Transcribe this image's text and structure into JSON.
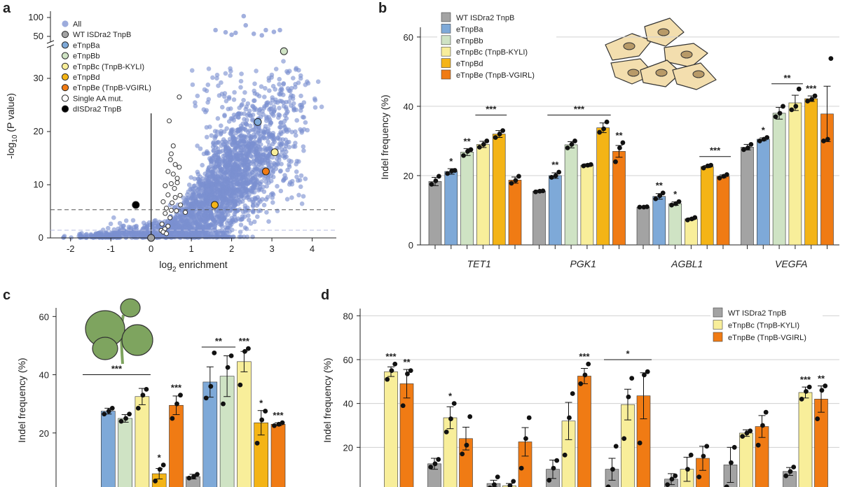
{
  "colors": {
    "all": "#7b8fd0",
    "wt": "#a3a3a3",
    "a": "#7ea9d8",
    "b": "#cfe3c4",
    "c": "#f8ee9a",
    "d": "#f4b416",
    "e": "#f07b14",
    "axis": "#222222",
    "grid": "#d0d0d0",
    "cell": "#f3deae",
    "nucleus": "#b89a68",
    "leaf": "#7ea45f"
  },
  "chart_data": [
    {
      "panel": "a",
      "type": "scatter",
      "xlabel_base": "log",
      "xlabel_sub": "2",
      "xlabel_rest": " enrichment",
      "ylabel_pre": "-log",
      "ylabel_sub": "10",
      "ylabel_post": " (P value)",
      "xlim": [
        -2.5,
        4.6
      ],
      "xticks": [
        "-2",
        "-1",
        "0",
        "1",
        "2",
        "3",
        "4"
      ],
      "lower_yticks": [
        "0",
        "10",
        "20",
        "30"
      ],
      "upper_yticks": [
        "50",
        "100"
      ],
      "threshold_y": 5.3,
      "legend": [
        {
          "label": "All",
          "style": "all"
        },
        {
          "label": "WT ISDra2 TnpB",
          "style": "wt"
        },
        {
          "label": "eTnpBa",
          "style": "a"
        },
        {
          "label": "eTnpBb",
          "style": "b"
        },
        {
          "label": "eTnpBc (TnpB-KYLI)",
          "style": "c"
        },
        {
          "label": "eTnpBd",
          "style": "d"
        },
        {
          "label": "eTnpBe (TnpB-VGIRL)",
          "style": "e"
        },
        {
          "label": "Single AA mut.",
          "style": "open"
        },
        {
          "label": "dISDra2 TnpB",
          "style": "dead"
        }
      ],
      "highlighted": [
        {
          "name": "WT ISDra2 TnpB",
          "style": "wt",
          "x": 0.0,
          "y": 0.0
        },
        {
          "name": "eTnpBa",
          "style": "a",
          "x": 2.65,
          "y": 21.8
        },
        {
          "name": "eTnpBb",
          "style": "b",
          "x": 3.3,
          "y": 35.1
        },
        {
          "name": "eTnpBc (TnpB-KYLI)",
          "style": "c",
          "x": 3.07,
          "y": 16.1
        },
        {
          "name": "eTnpBd",
          "style": "d",
          "x": 1.58,
          "y": 6.2
        },
        {
          "name": "eTnpBe (TnpB-VGIRL)",
          "style": "e",
          "x": 2.85,
          "y": 12.5
        },
        {
          "name": "dISDra2 TnpB",
          "style": "dead",
          "x": -0.38,
          "y": 6.2
        }
      ],
      "single_aa": [
        [
          0.7,
          26.5
        ],
        [
          0.45,
          22.0
        ],
        [
          0.5,
          15.8
        ],
        [
          0.48,
          14.7
        ],
        [
          0.6,
          13.8
        ],
        [
          0.7,
          13.3
        ],
        [
          0.42,
          12.5
        ],
        [
          0.55,
          12.0
        ],
        [
          0.5,
          10.2
        ],
        [
          0.65,
          10.4
        ],
        [
          0.35,
          9.8
        ],
        [
          0.58,
          9.3
        ],
        [
          0.72,
          8.0
        ],
        [
          0.42,
          8.1
        ],
        [
          0.6,
          7.6
        ],
        [
          0.3,
          6.8
        ],
        [
          0.52,
          6.6
        ],
        [
          0.73,
          6.2
        ],
        [
          0.38,
          5.6
        ],
        [
          0.5,
          5.2
        ],
        [
          0.63,
          5.1
        ],
        [
          0.35,
          4.6
        ],
        [
          0.47,
          3.8
        ],
        [
          0.27,
          2.6
        ],
        [
          0.42,
          2.2
        ],
        [
          0.34,
          1.7
        ],
        [
          0.25,
          1.4
        ],
        [
          0.3,
          1.1
        ],
        [
          0.38,
          0.8
        ],
        [
          0.85,
          4.8
        ],
        [
          0.55,
          17.3
        ],
        [
          0.65,
          11.2
        ]
      ]
    },
    {
      "panel": "b",
      "type": "bar",
      "ylabel": "Indel frequency (%)",
      "ylim": [
        0,
        62
      ],
      "yticks": [
        "0",
        "20",
        "40",
        "60"
      ],
      "legend": [
        {
          "label": "WT ISDra2 TnpB",
          "style": "wt"
        },
        {
          "label": "eTnpBa",
          "style": "a"
        },
        {
          "label": "eTnpBb",
          "style": "b"
        },
        {
          "label": "eTnpBc (TnpB-KYLI)",
          "style": "c"
        },
        {
          "label": "eTnpBd",
          "style": "d"
        },
        {
          "label": "eTnpBe (TnpB-VGIRL)",
          "style": "e"
        }
      ],
      "categories": [
        "TET1",
        "PGK1",
        "AGBL1",
        "VEGFA"
      ],
      "series_styles": [
        "wt",
        "a",
        "b",
        "c",
        "d",
        "e"
      ],
      "values": [
        [
          18.3,
          21.2,
          26.8,
          29.0,
          32.0,
          18.7
        ],
        [
          15.5,
          20.0,
          28.9,
          23.0,
          33.8,
          27.0
        ],
        [
          10.9,
          14.0,
          11.9,
          7.5,
          22.6,
          19.8
        ],
        [
          28.2,
          30.5,
          38.0,
          41.0,
          42.2,
          37.8
        ]
      ],
      "errors": [
        [
          1.2,
          0.8,
          1.0,
          0.9,
          1.0,
          0.9
        ],
        [
          0.3,
          0.8,
          0.9,
          0.4,
          1.4,
          1.7
        ],
        [
          0.1,
          0.8,
          0.5,
          0.3,
          0.3,
          0.4
        ],
        [
          0.8,
          0.4,
          1.7,
          2.2,
          0.8,
          8.0
        ]
      ],
      "points": [
        [
          [
            17.5,
            18.5,
            19.8
          ],
          [
            20.6,
            21.3,
            21.5
          ],
          [
            25.8,
            27.0,
            27.5
          ],
          [
            28.2,
            29.0,
            30.0
          ],
          [
            31.0,
            32.0,
            33.0
          ],
          [
            17.8,
            18.6,
            19.8
          ]
        ],
        [
          [
            15.3,
            15.5,
            15.6
          ],
          [
            19.5,
            20.0,
            21.0
          ],
          [
            28.0,
            29.0,
            30.0
          ],
          [
            22.8,
            23.0,
            23.2
          ],
          [
            32.5,
            33.5,
            35.5
          ],
          [
            24.0,
            28.0,
            29.5
          ]
        ],
        [
          [
            10.9,
            10.9,
            11.0
          ],
          [
            13.3,
            14.2,
            15.0
          ],
          [
            11.5,
            11.9,
            12.5
          ],
          [
            7.2,
            7.5,
            7.9
          ],
          [
            22.2,
            22.8,
            23.0
          ],
          [
            19.3,
            19.8,
            20.3
          ]
        ],
        [
          [
            27.5,
            28.0,
            29.0
          ],
          [
            30.0,
            30.5,
            31.0
          ],
          [
            37.0,
            38.0,
            40.0
          ],
          [
            39.0,
            40.0,
            45.0
          ],
          [
            41.5,
            42.0,
            43.0
          ],
          [
            30.0,
            30.5,
            53.8
          ]
        ]
      ],
      "sig": [
        [
          "",
          "*",
          "**",
          "",
          "",
          ""
        ],
        [
          "",
          "**",
          "",
          "",
          "",
          "**"
        ],
        [
          "",
          "**",
          "*",
          "",
          "",
          ""
        ],
        [
          "",
          "*",
          "",
          "",
          "***",
          ""
        ]
      ],
      "brackets": [
        {
          "category": 0,
          "from": 3,
          "to": 4,
          "label": "***",
          "y": 37.5
        },
        {
          "category": 1,
          "from": 1,
          "to": 4,
          "label": "***",
          "y": 37.5
        },
        {
          "category": 2,
          "from": 4,
          "to": 5,
          "label": "***",
          "y": 25.5
        },
        {
          "category": 3,
          "from": 2,
          "to": 3,
          "label": "**",
          "y": 46.5
        }
      ]
    },
    {
      "panel": "c",
      "type": "bar",
      "ylabel": "Indel frequency (%)",
      "ylim": [
        0,
        62
      ],
      "yticks": [
        "20",
        "40",
        "60"
      ],
      "series_styles": [
        "wt",
        "a",
        "b",
        "c",
        "d",
        "e"
      ],
      "values": [
        [
          null,
          27.5,
          25.0,
          32.5,
          6.0,
          29.5
        ],
        [
          5.0,
          37.5,
          39.5,
          44.5,
          23.5,
          23.0
        ]
      ],
      "errors": [
        [
          0,
          1.0,
          1.3,
          2.8,
          1.8,
          3.2
        ],
        [
          0.8,
          5.2,
          7.0,
          3.5,
          4.2,
          0.5
        ]
      ],
      "points": [
        [
          [],
          [
            26.5,
            27.5,
            28.5
          ],
          [
            24.0,
            25.0,
            26.5
          ],
          [
            28.5,
            33.0,
            35.0
          ],
          [
            3.5,
            7.5,
            9.0
          ],
          [
            25.0,
            30.0,
            33.0
          ]
        ],
        [
          [
            4.5,
            5.0,
            5.8
          ],
          [
            32.0,
            36.0,
            47.5
          ],
          [
            30.0,
            42.5,
            46.5
          ],
          [
            36.5,
            48.0,
            49.0
          ],
          [
            16.5,
            24.5,
            27.5
          ],
          [
            22.5,
            23.0,
            23.5
          ]
        ]
      ],
      "sig": [
        [
          "",
          "",
          "",
          "",
          "*",
          "***"
        ],
        [
          "",
          "",
          "",
          "***",
          "*",
          "***"
        ]
      ],
      "brackets": [
        {
          "group": 0,
          "from": 0,
          "to": 3,
          "label": "***",
          "y": 40.0
        },
        {
          "group": 1,
          "from": 1,
          "to": 2,
          "label": "**",
          "y": 49.5
        }
      ]
    },
    {
      "panel": "d",
      "type": "bar",
      "ylabel": "Indel frequency (%)",
      "ylim": [
        0,
        82
      ],
      "yticks": [
        "20",
        "40",
        "60",
        "80"
      ],
      "legend": [
        {
          "label": "WT ISDra2 TnpB",
          "style": "wt"
        },
        {
          "label": "eTnpBc (TnpB-KYLI)",
          "style": "c"
        },
        {
          "label": "eTnpBe (TnpB-VGIRL)",
          "style": "e"
        }
      ],
      "series_styles": [
        "wt",
        "c",
        "e"
      ],
      "values": [
        [
          null,
          54.5,
          49.0
        ],
        [
          12.5,
          33.5,
          24.0
        ],
        [
          3.5,
          2.5,
          22.5
        ],
        [
          10.0,
          32.0,
          52.5
        ],
        [
          10.0,
          39.5,
          43.5
        ],
        [
          5.5,
          10.0,
          15.0
        ],
        [
          12.0,
          26.5,
          29.5
        ],
        [
          9.0,
          45.0,
          42.0
        ]
      ],
      "errors": [
        [
          0,
          2.2,
          6.5
        ],
        [
          2.5,
          5.0,
          5.2
        ],
        [
          1.5,
          1.0,
          6.5
        ],
        [
          4.2,
          8.5,
          3.5
        ],
        [
          5.0,
          7.0,
          10.5
        ],
        [
          2.5,
          5.5,
          5.5
        ],
        [
          8.0,
          1.5,
          5.0
        ],
        [
          1.8,
          2.5,
          6.0
        ]
      ],
      "points": [
        [
          [],
          [
            51.0,
            55.0,
            58.0
          ],
          [
            39.0,
            53.5,
            55.0
          ]
        ],
        [
          [
            11.0,
            12.5,
            14.5
          ],
          [
            27.0,
            33.0,
            40.0
          ],
          [
            17.0,
            21.0,
            34.0
          ]
        ],
        [
          [
            1.5,
            3.0,
            6.5
          ],
          [
            0.5,
            2.5,
            4.5
          ],
          [
            10.5,
            24.0,
            33.5
          ]
        ],
        [
          [
            5.0,
            10.5,
            14.0
          ],
          [
            16.5,
            33.5,
            44.5
          ],
          [
            49.0,
            53.0,
            58.0
          ]
        ],
        [
          [
            2.0,
            10.0,
            20.5
          ],
          [
            24.0,
            43.0,
            51.5
          ],
          [
            22.0,
            53.0,
            54.5
          ]
        ],
        [
          [
            3.0,
            5.5,
            7.0
          ],
          [
            0.5,
            10.0,
            16.5
          ],
          [
            6.5,
            16.0,
            20.5
          ]
        ],
        [
          [
            2.0,
            13.0,
            20.0
          ],
          [
            25.0,
            26.5,
            27.5
          ],
          [
            21.0,
            30.0,
            36.0
          ]
        ],
        [
          [
            7.0,
            9.0,
            11.0
          ],
          [
            42.0,
            45.5,
            47.5
          ],
          [
            33.0,
            46.0,
            48.0
          ]
        ]
      ],
      "sig": [
        [
          "",
          "***",
          "**"
        ],
        [
          "",
          "*",
          ""
        ],
        [
          "",
          "",
          ""
        ],
        [
          "",
          "",
          "***"
        ],
        [
          "",
          "",
          ""
        ],
        [
          "",
          "",
          ""
        ],
        [
          "",
          "",
          ""
        ],
        [
          "",
          "***",
          "**"
        ]
      ],
      "brackets": [
        {
          "group": 4,
          "from": 0,
          "to": 2,
          "label": "*",
          "y": 60.0
        }
      ]
    }
  ]
}
